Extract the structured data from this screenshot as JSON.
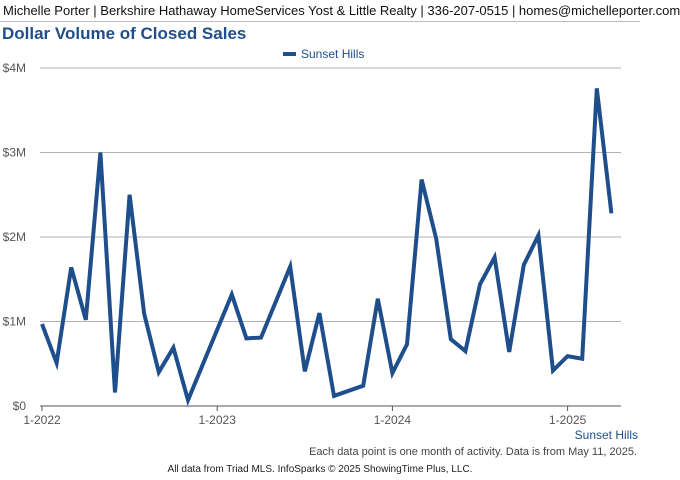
{
  "header": {
    "text": "Michelle Porter | Berkshire Hathaway HomeServices Yost & Little Realty | 336-207-0515 | homes@michelleporter.com"
  },
  "colors": {
    "series": "#1f4e8c",
    "title": "#1f4e8c",
    "gridline": "#b3b3b3",
    "axis": "#555555"
  },
  "chart_data": {
    "type": "line",
    "title": "Dollar Volume of Closed Sales",
    "xlabel": "",
    "ylabel": "",
    "ylim": [
      0,
      4000000
    ],
    "yticks": [
      {
        "value": 0,
        "label": "$0"
      },
      {
        "value": 1000000,
        "label": "$1M"
      },
      {
        "value": 2000000,
        "label": "$2M"
      },
      {
        "value": 3000000,
        "label": "$3M"
      },
      {
        "value": 4000000,
        "label": "$4M"
      }
    ],
    "xticks": [
      {
        "value": "2022-01",
        "label": "1-2022"
      },
      {
        "value": "2023-01",
        "label": "1-2023"
      },
      {
        "value": "2024-01",
        "label": "1-2024"
      },
      {
        "value": "2025-01",
        "label": "1-2025"
      }
    ],
    "x": [
      "2022-01",
      "2022-02",
      "2022-03",
      "2022-04",
      "2022-05",
      "2022-06",
      "2022-07",
      "2022-08",
      "2022-09",
      "2022-10",
      "2022-11",
      "2022-12",
      "2023-01",
      "2023-02",
      "2023-03",
      "2023-04",
      "2023-05",
      "2023-06",
      "2023-07",
      "2023-08",
      "2023-09",
      "2023-10",
      "2023-11",
      "2023-12",
      "2024-01",
      "2024-02",
      "2024-03",
      "2024-04",
      "2024-05",
      "2024-06",
      "2024-07",
      "2024-08",
      "2024-09",
      "2024-10",
      "2024-11",
      "2024-12",
      "2025-01",
      "2025-02",
      "2025-03",
      "2025-04"
    ],
    "series": [
      {
        "name": "Sunset Hills",
        "values": [
          970000,
          510000,
          1640000,
          1020000,
          3000000,
          160000,
          2500000,
          1090000,
          400000,
          690000,
          70000,
          null,
          null,
          1320000,
          800000,
          810000,
          null,
          1650000,
          410000,
          1100000,
          120000,
          null,
          240000,
          1270000,
          390000,
          730000,
          2680000,
          1980000,
          790000,
          650000,
          1440000,
          1760000,
          640000,
          1670000,
          2020000,
          420000,
          590000,
          560000,
          3760000,
          2280000
        ]
      }
    ],
    "grid": true,
    "legend": "top-center",
    "corner_label": "Sunset Hills",
    "note": "Each data point is one month of activity. Data is from May 11, 2025."
  },
  "footer": {
    "text": "All data from Triad MLS. InfoSparks © 2025 ShowingTime Plus, LLC."
  }
}
